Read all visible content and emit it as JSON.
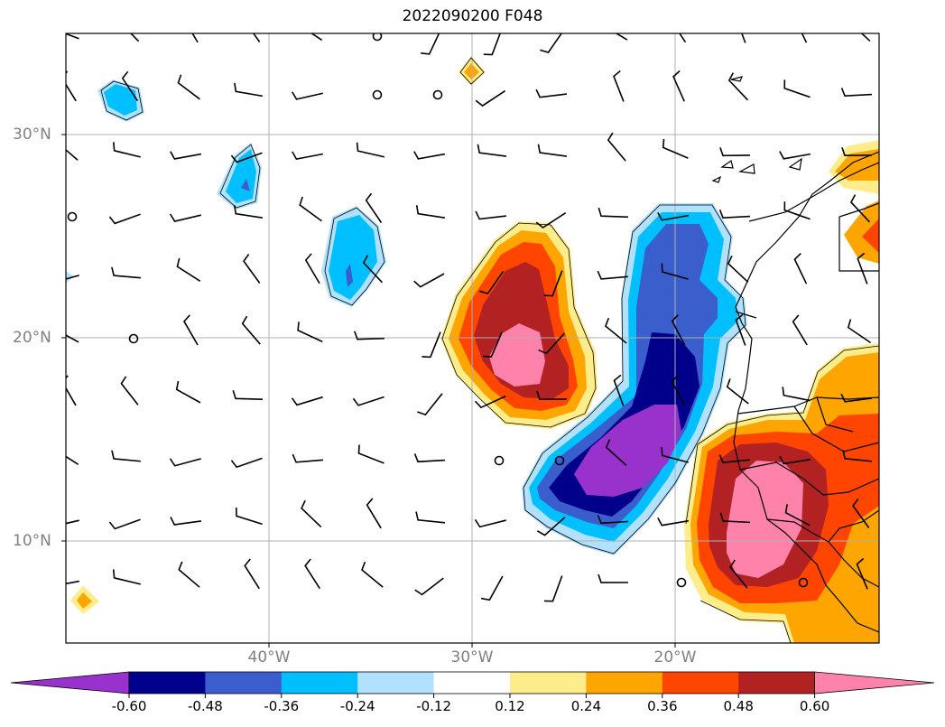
{
  "title": "2022090200 F048",
  "map": {
    "lon_range": [
      -50,
      -10
    ],
    "lat_range": [
      5,
      35
    ],
    "lon_labels": [
      "40°W",
      "30°W",
      "20°W"
    ],
    "lat_labels": [
      "30°N",
      "20°N",
      "10°N"
    ],
    "gridlines": true
  },
  "colorbar": {
    "levels": [
      "-0.60",
      "-0.48",
      "-0.36",
      "-0.24",
      "-0.12",
      "0.12",
      "0.24",
      "0.36",
      "0.48",
      "0.60"
    ],
    "colors": [
      "#9932cc",
      "#00008b",
      "#3a5fcd",
      "#00bfff",
      "#b0e2ff",
      "#ffffff",
      "#ffec8b",
      "#ffa500",
      "#ff4500",
      "#b22222",
      "#ff82ab"
    ]
  }
}
